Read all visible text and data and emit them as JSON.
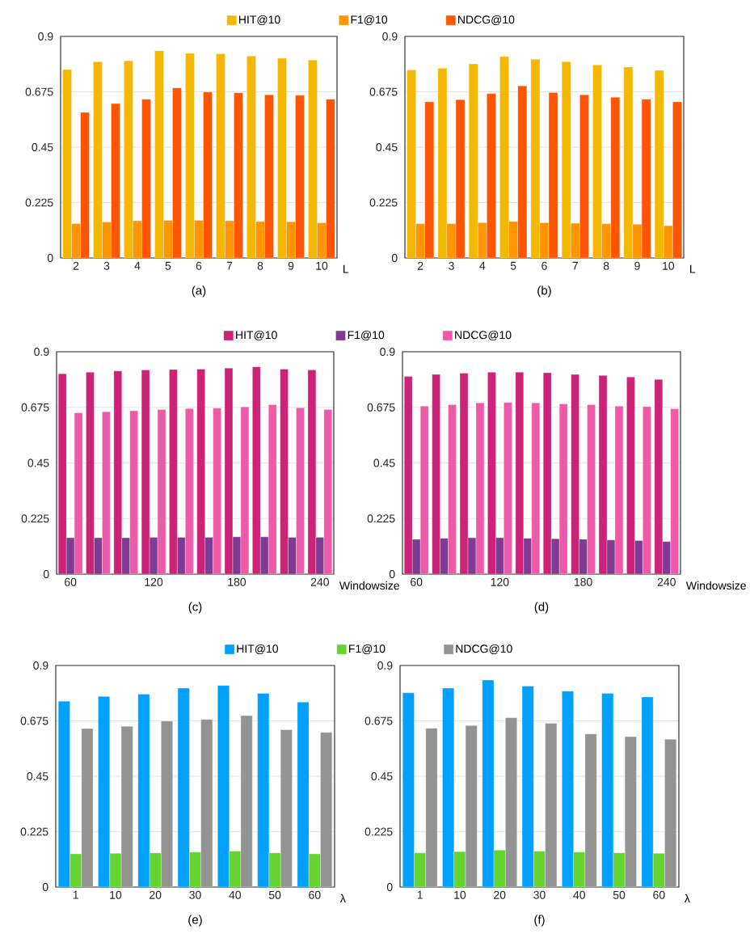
{
  "chart_data": [
    {
      "type": "bar",
      "title": "(a)",
      "xlabel": "L",
      "categories": [
        "2",
        "3",
        "4",
        "5",
        "6",
        "7",
        "8",
        "9",
        "10"
      ],
      "ylim": [
        0,
        0.9
      ],
      "yticks": [
        0,
        0.225,
        0.45,
        0.675,
        0.9
      ],
      "grid": "y",
      "legend": "top",
      "series": [
        {
          "name": "HIT@10",
          "color": "#f5b800",
          "values": [
            0.765,
            0.797,
            0.801,
            0.842,
            0.831,
            0.829,
            0.82,
            0.811,
            0.804
          ]
        },
        {
          "name": "F1@10",
          "color": "#ff9500",
          "values": [
            0.14,
            0.146,
            0.151,
            0.153,
            0.153,
            0.151,
            0.148,
            0.147,
            0.143
          ]
        },
        {
          "name": "NDCG@10",
          "color": "#ff5500",
          "values": [
            0.591,
            0.627,
            0.645,
            0.691,
            0.674,
            0.671,
            0.663,
            0.661,
            0.645
          ]
        }
      ]
    },
    {
      "type": "bar",
      "title": "(b)",
      "xlabel": "L",
      "categories": [
        "2",
        "3",
        "4",
        "5",
        "6",
        "7",
        "8",
        "9",
        "10"
      ],
      "ylim": [
        0,
        0.9
      ],
      "yticks": [
        0,
        0.225,
        0.45,
        0.675,
        0.9
      ],
      "grid": "y",
      "series": [
        {
          "color": "#f5b800",
          "values": [
            0.764,
            0.771,
            0.788,
            0.818,
            0.807,
            0.797,
            0.784,
            0.775,
            0.762
          ]
        },
        {
          "color": "#ff9500",
          "values": [
            0.139,
            0.139,
            0.143,
            0.148,
            0.143,
            0.141,
            0.139,
            0.137,
            0.131
          ]
        },
        {
          "color": "#ff5500",
          "values": [
            0.634,
            0.643,
            0.668,
            0.699,
            0.672,
            0.663,
            0.653,
            0.645,
            0.634
          ]
        }
      ]
    },
    {
      "type": "bar",
      "title": "(c)",
      "xlabel": "Windowsize",
      "categories": [
        "60",
        null,
        null,
        "120",
        null,
        null,
        "180",
        null,
        null,
        "240"
      ],
      "ylim": [
        0,
        0.9
      ],
      "yticks": [
        0,
        0.225,
        0.45,
        0.675,
        0.9
      ],
      "grid": "y",
      "legend": "top",
      "series": [
        {
          "name": "HIT@10",
          "color": "#cc2277",
          "values": [
            0.811,
            0.817,
            0.822,
            0.826,
            0.828,
            0.83,
            0.834,
            0.839,
            0.83,
            0.826
          ]
        },
        {
          "name": "F1@10",
          "color": "#7f3a94",
          "values": [
            0.147,
            0.147,
            0.147,
            0.149,
            0.149,
            0.149,
            0.151,
            0.151,
            0.149,
            0.149
          ]
        },
        {
          "name": "NDCG@10",
          "color": "#ee5aa8",
          "values": [
            0.653,
            0.657,
            0.661,
            0.666,
            0.67,
            0.672,
            0.677,
            0.686,
            0.673,
            0.666
          ]
        }
      ]
    },
    {
      "type": "bar",
      "title": "(d)",
      "xlabel": "Windowsize",
      "categories": [
        "60",
        null,
        null,
        "120",
        null,
        null,
        "180",
        null,
        null,
        "240"
      ],
      "ylim": [
        0,
        0.9
      ],
      "yticks": [
        0,
        0.225,
        0.45,
        0.675,
        0.9
      ],
      "grid": "y",
      "series": [
        {
          "color": "#cc2277",
          "values": [
            0.8,
            0.808,
            0.813,
            0.817,
            0.817,
            0.815,
            0.808,
            0.804,
            0.798,
            0.788
          ]
        },
        {
          "color": "#7f3a94",
          "values": [
            0.141,
            0.145,
            0.147,
            0.147,
            0.145,
            0.143,
            0.141,
            0.138,
            0.136,
            0.132
          ]
        },
        {
          "color": "#ee5aa8",
          "values": [
            0.68,
            0.686,
            0.693,
            0.695,
            0.693,
            0.689,
            0.686,
            0.68,
            0.678,
            0.669
          ]
        }
      ]
    },
    {
      "type": "bar",
      "title": "(e)",
      "xlabel": "λ",
      "categories": [
        "1",
        "10",
        "20",
        "30",
        "40",
        "50",
        "60"
      ],
      "ylim": [
        0,
        0.9
      ],
      "yticks": [
        0,
        0.225,
        0.45,
        0.675,
        0.9
      ],
      "grid": "y",
      "legend": "top",
      "series": [
        {
          "name": "HIT@10",
          "color": "#00a0ff",
          "values": [
            0.755,
            0.774,
            0.783,
            0.808,
            0.819,
            0.787,
            0.751
          ]
        },
        {
          "name": "F1@10",
          "color": "#66d430",
          "values": [
            0.135,
            0.137,
            0.139,
            0.142,
            0.146,
            0.139,
            0.135
          ]
        },
        {
          "name": "NDCG@10",
          "color": "#939393",
          "values": [
            0.644,
            0.653,
            0.674,
            0.681,
            0.696,
            0.639,
            0.628
          ]
        }
      ]
    },
    {
      "type": "bar",
      "title": "(f)",
      "xlabel": "λ",
      "categories": [
        "1",
        "10",
        "20",
        "30",
        "40",
        "50",
        "60"
      ],
      "ylim": [
        0,
        0.9
      ],
      "yticks": [
        0,
        0.225,
        0.45,
        0.675,
        0.9
      ],
      "grid": "y",
      "series": [
        {
          "color": "#00a0ff",
          "values": [
            0.789,
            0.808,
            0.841,
            0.816,
            0.796,
            0.787,
            0.772
          ]
        },
        {
          "color": "#66d430",
          "values": [
            0.139,
            0.144,
            0.15,
            0.146,
            0.142,
            0.139,
            0.137
          ]
        },
        {
          "color": "#939393",
          "values": [
            0.645,
            0.656,
            0.688,
            0.665,
            0.622,
            0.611,
            0.6
          ]
        }
      ]
    }
  ]
}
